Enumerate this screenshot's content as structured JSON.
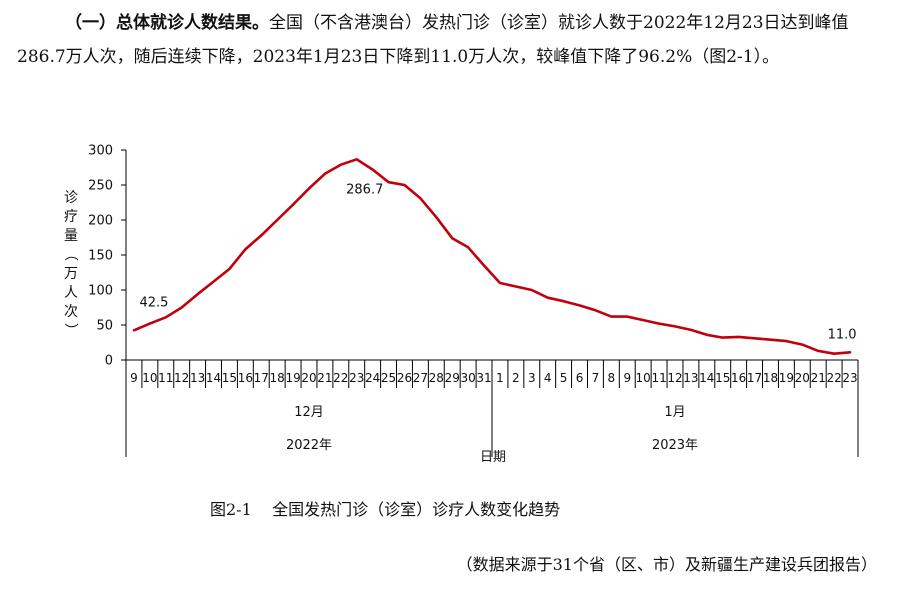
{
  "paragraph": {
    "heading": "（一）总体就诊人数结果。",
    "body": "全国（不含港澳台）发热门诊（诊室）就诊人数于2022年12月23日达到峰值286.7万人次，随后连续下降，2023年1月23日下降到11.0万人次，较峰值下降了96.2%（图2-1）。"
  },
  "caption": {
    "number": "图2-1",
    "title": "全国发热门诊（诊室）诊疗人数变化趋势"
  },
  "source_note": "（数据来源于31个省（区、市）及新疆生产建设兵团报告）",
  "chart_data": {
    "type": "line",
    "ylabel": "诊疗量（万人次）",
    "xlabel": "日期",
    "ylim": [
      0,
      300
    ],
    "yticks": [
      0,
      50,
      100,
      150,
      200,
      250,
      300
    ],
    "grid": false,
    "line_color": "#c0000b",
    "categories": [
      "9",
      "10",
      "11",
      "12",
      "13",
      "14",
      "15",
      "16",
      "17",
      "18",
      "19",
      "20",
      "21",
      "22",
      "23",
      "24",
      "25",
      "26",
      "27",
      "28",
      "29",
      "30",
      "31",
      "1",
      "2",
      "3",
      "4",
      "5",
      "6",
      "7",
      "8",
      "9",
      "10",
      "11",
      "12",
      "13",
      "14",
      "15",
      "16",
      "17",
      "18",
      "19",
      "20",
      "21",
      "22",
      "23"
    ],
    "values": [
      42.5,
      52,
      61,
      75,
      94,
      112,
      130,
      158,
      178,
      200,
      222,
      245,
      266,
      279,
      286.7,
      272,
      254,
      250,
      231,
      204,
      174,
      161,
      135,
      110,
      105,
      100,
      89,
      84,
      78,
      71,
      62,
      62,
      57,
      52,
      48,
      43,
      36,
      32,
      33,
      31,
      29,
      27,
      22,
      13,
      9,
      11.0
    ],
    "month_groups": [
      {
        "label": "12月",
        "year": "2022年",
        "count": 23
      },
      {
        "label": "1月",
        "year": "2023年",
        "count": 23
      }
    ],
    "annotations": [
      {
        "index": 0,
        "text": "42.5"
      },
      {
        "index": 14,
        "text": "286.7"
      },
      {
        "index": 45,
        "text": "11.0"
      }
    ]
  }
}
